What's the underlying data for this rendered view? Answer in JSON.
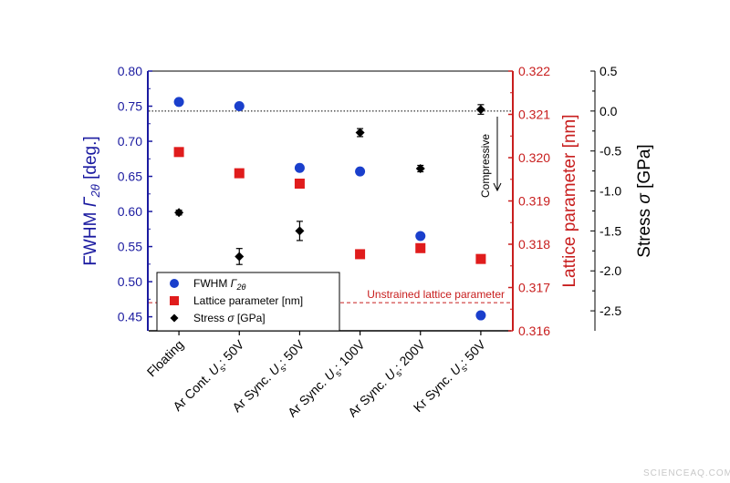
{
  "watermark": "SCIENCEAQ.COM",
  "chart_data": {
    "type": "scatter",
    "categories": [
      "Floating",
      "Ar Cont. U_s: 50V",
      "Ar Sync. U_s: 50V",
      "Ar Sync. U_s: 100V",
      "Ar Sync. U_s: 200V",
      "Kr Sync. U_s: 50V"
    ],
    "category_labels": [
      {
        "pre": "Floating",
        "var": "",
        "sub": "",
        "post": ""
      },
      {
        "pre": "Ar Cont. ",
        "var": "U",
        "sub": "s",
        "post": ": 50V"
      },
      {
        "pre": "Ar Sync. ",
        "var": "U",
        "sub": "s",
        "post": ": 50V"
      },
      {
        "pre": "Ar Sync. ",
        "var": "U",
        "sub": "s",
        "post": ": 100V"
      },
      {
        "pre": "Ar Sync. ",
        "var": "U",
        "sub": "s",
        "post": ": 200V"
      },
      {
        "pre": "Kr Sync. ",
        "var": "U",
        "sub": "s",
        "post": ": 50V"
      }
    ],
    "axes": {
      "left": {
        "label_main": "FWHM ",
        "label_var": "Γ",
        "label_sub": "2θ",
        "label_end": " [deg.]",
        "range": [
          0.43,
          0.8
        ],
        "ticks": [
          "0.45",
          "0.50",
          "0.55",
          "0.60",
          "0.65",
          "0.70",
          "0.75",
          "0.80"
        ],
        "color": "#1a1aa0"
      },
      "middle": {
        "label": "Lattice parameter [nm]",
        "range": [
          0.316,
          0.322
        ],
        "ticks": [
          "0.316",
          "0.317",
          "0.318",
          "0.319",
          "0.320",
          "0.321",
          "0.322"
        ],
        "color": "#c81e1e"
      },
      "right": {
        "label_main": "Stress ",
        "label_var": "σ",
        "label_end": " [GPa]",
        "range": [
          -2.75,
          0.5
        ],
        "ticks": [
          "-2.5",
          "-2.0",
          "-1.5",
          "-1.0",
          "-0.5",
          "0.0",
          "0.5"
        ],
        "color": "#000000"
      }
    },
    "series": [
      {
        "name": "FWHM Γ2θ",
        "legend_main": "FWHM ",
        "legend_var": "Γ",
        "legend_sub": "2θ",
        "legend_end": "",
        "marker": "circle",
        "color": "#1a3fcc",
        "axis": "left",
        "values": [
          0.756,
          0.75,
          0.662,
          0.657,
          0.565,
          0.452
        ]
      },
      {
        "name": "Lattice parameter [nm]",
        "legend_main": "Lattice parameter [nm]",
        "legend_var": "",
        "legend_sub": "",
        "legend_end": "",
        "marker": "square",
        "color": "#e01c1c",
        "axis": "middle",
        "values": [
          0.32013,
          0.31964,
          0.3194,
          0.31777,
          0.31791,
          0.31766
        ]
      },
      {
        "name": "Stress σ [GPa]",
        "legend_main": "Stress ",
        "legend_var": "σ",
        "legend_sub": "",
        "legend_end": " [GPa]",
        "marker": "diamond",
        "color": "#000000",
        "axis": "right",
        "values": [
          -1.27,
          -1.82,
          -1.5,
          -0.27,
          -0.72,
          0.02
        ],
        "errors": [
          0.03,
          0.1,
          0.12,
          0.05,
          0.04,
          0.06
        ]
      }
    ],
    "reference_lines": [
      {
        "name": "zero-stress-line",
        "axis": "right",
        "value": 0.0,
        "style": "dotted"
      },
      {
        "name": "unstrained-lattice-line",
        "axis": "middle",
        "value": 0.31665,
        "style": "dashed",
        "color": "#c81e1e",
        "label": "Unstrained  lattice  parameter"
      }
    ],
    "annotation": {
      "text": "Compressive",
      "arrow": "down"
    },
    "legend_position": "bottom-left"
  }
}
